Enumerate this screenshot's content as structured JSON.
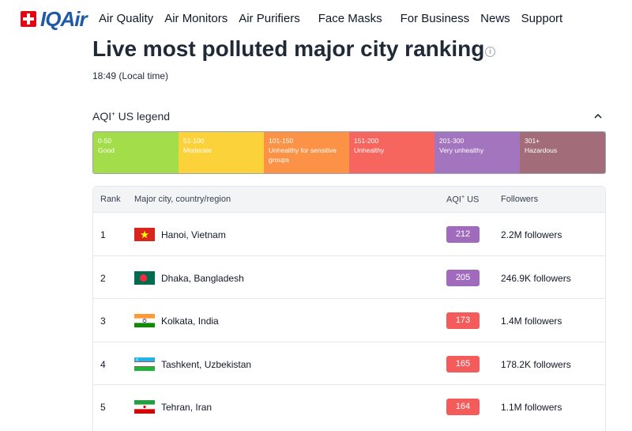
{
  "header": {
    "logo_text": "IQAir",
    "nav": [
      "Air Quality",
      "Air Monitors",
      "Air Purifiers",
      "Face Masks",
      "For Business",
      "News",
      "Support"
    ]
  },
  "page": {
    "title": "Live most polluted major city ranking",
    "local_time": "18:49 (Local time)"
  },
  "legend": {
    "title": "AQI",
    "title_sup": "+",
    "title_suffix": " US legend",
    "segments": [
      {
        "range": "0-50",
        "label": "Good",
        "color": "#a3dd4a"
      },
      {
        "range": "51-100",
        "label": "Moderate",
        "color": "#fbd23a"
      },
      {
        "range": "101-150",
        "label": "Unhealthy for sensitive groups",
        "color": "#fb9245"
      },
      {
        "range": "151-200",
        "label": "Unhealthy",
        "color": "#f6655e"
      },
      {
        "range": "201-300",
        "label": "Very unhealthy",
        "color": "#a375be"
      },
      {
        "range": "301+",
        "label": "Hazardous",
        "color": "#a26d79"
      }
    ]
  },
  "table": {
    "headers": {
      "rank": "Rank",
      "city": "Major city, country/region",
      "aqi": "AQI",
      "aqi_sup": "+",
      "aqi_suffix": " US",
      "followers": "Followers"
    },
    "rows": [
      {
        "rank": "1",
        "city": "Hanoi, Vietnam",
        "aqi": "212",
        "aqi_color": "#a06bbd",
        "followers": "2.2M followers",
        "flag": "vietnam-flag-icon"
      },
      {
        "rank": "2",
        "city": "Dhaka, Bangladesh",
        "aqi": "205",
        "aqi_color": "#a06bbd",
        "followers": "246.9K followers",
        "flag": "bangladesh-flag-icon"
      },
      {
        "rank": "3",
        "city": "Kolkata, India",
        "aqi": "173",
        "aqi_color": "#f45b5b",
        "followers": "1.4M followers",
        "flag": "india-flag-icon"
      },
      {
        "rank": "4",
        "city": "Tashkent, Uzbekistan",
        "aqi": "165",
        "aqi_color": "#f45b5b",
        "followers": "178.2K followers",
        "flag": "uzbekistan-flag-icon"
      },
      {
        "rank": "5",
        "city": "Tehran, Iran",
        "aqi": "164",
        "aqi_color": "#f45b5b",
        "followers": "1.1M followers",
        "flag": "iran-flag-icon"
      }
    ]
  }
}
